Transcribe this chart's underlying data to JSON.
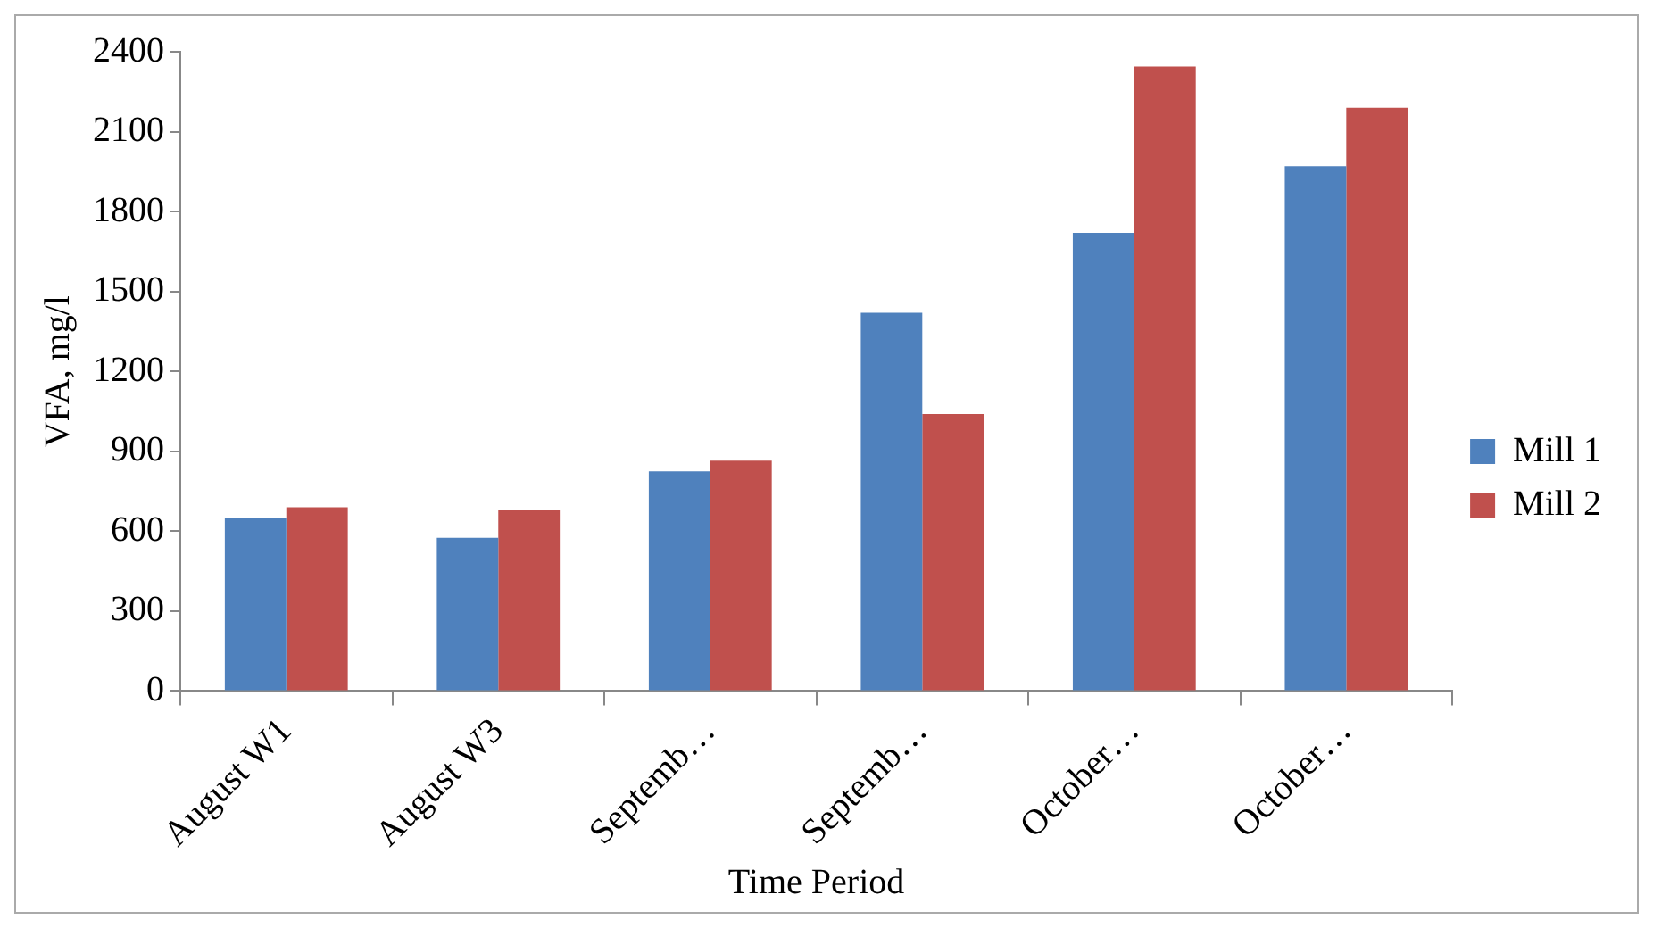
{
  "chart_data": {
    "type": "bar",
    "xlabel": "Time Period",
    "ylabel": "VFA, mg/l",
    "categories": [
      "August W1",
      "August W3",
      "Septemb…",
      "Septemb…",
      "October…",
      "October…"
    ],
    "series": [
      {
        "name": "Mill 1",
        "color": "#4f81bd",
        "values": [
          650,
          575,
          825,
          1420,
          1720,
          1970
        ]
      },
      {
        "name": "Mill 2",
        "color": "#c0504d",
        "values": [
          690,
          680,
          865,
          1040,
          2345,
          2190
        ]
      }
    ],
    "ylim": [
      0,
      2400
    ],
    "yticks": [
      0,
      300,
      600,
      900,
      1200,
      1500,
      1800,
      2100,
      2400
    ],
    "grid": false,
    "legend": "right"
  }
}
